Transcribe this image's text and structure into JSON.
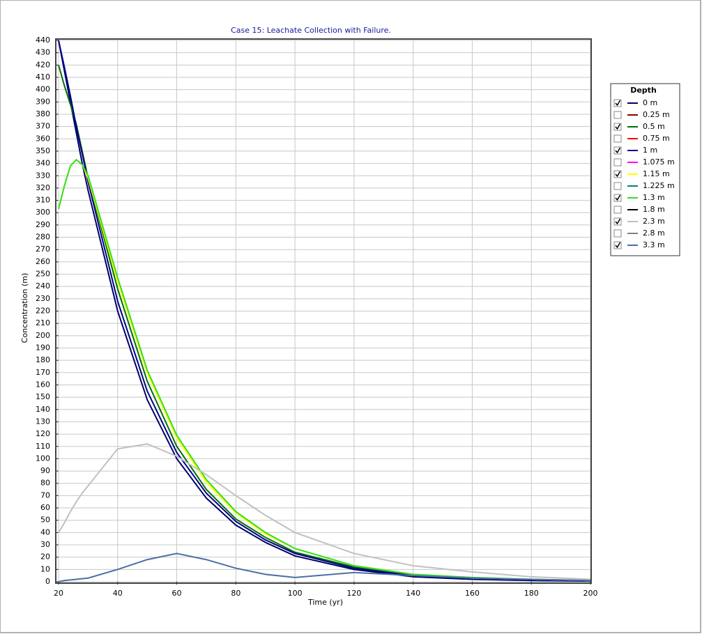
{
  "chart_data": {
    "type": "line",
    "title": "Case 15: Leachate Collection with Failure.",
    "x_label": "Time (yr)",
    "y_label": "Concentration (m)",
    "legend_title": "Depth",
    "legend": "right",
    "x": [
      20,
      22,
      24,
      26,
      28,
      30,
      40,
      50,
      60,
      70,
      80,
      90,
      100,
      120,
      140,
      160,
      180,
      200
    ],
    "xlim": [
      20,
      200
    ],
    "xticks": [
      20,
      40,
      60,
      80,
      100,
      120,
      140,
      160,
      180,
      200
    ],
    "ylim": [
      0,
      440
    ],
    "yticks": [
      0,
      10,
      20,
      30,
      40,
      50,
      60,
      70,
      80,
      90,
      100,
      110,
      120,
      130,
      140,
      150,
      160,
      170,
      180,
      190,
      200,
      210,
      220,
      230,
      240,
      250,
      260,
      270,
      280,
      290,
      300,
      310,
      320,
      330,
      340,
      350,
      360,
      370,
      380,
      390,
      400,
      410,
      420,
      430,
      440
    ],
    "grid": true,
    "series": [
      {
        "name": "0 m",
        "color": "#000066",
        "checked": true,
        "values": [
          440,
          415,
          390,
          365,
          340,
          318,
          220,
          148,
          100,
          68,
          46,
          32,
          21,
          10,
          4,
          2,
          1,
          0.5
        ]
      },
      {
        "name": "0.25 m",
        "color": "#8b0000",
        "checked": false
      },
      {
        "name": "0.5 m",
        "color": "#007000",
        "checked": true,
        "values": [
          420,
          403,
          388,
          372,
          350,
          328,
          238,
          163,
          110,
          75,
          51,
          36,
          24,
          12,
          5,
          3,
          1.5,
          0.8
        ]
      },
      {
        "name": "0.75 m",
        "color": "#ff0000",
        "checked": false
      },
      {
        "name": "1 m",
        "color": "#00008b",
        "checked": true,
        "values": [
          440,
          418,
          395,
          370,
          348,
          325,
          228,
          155,
          105,
          72,
          49,
          34,
          23,
          11,
          5,
          2.5,
          1.2,
          0.6
        ]
      },
      {
        "name": "1.075 m",
        "color": "#ff00ff",
        "checked": false
      },
      {
        "name": "1.15 m",
        "color": "#ffff00",
        "checked": true,
        "values": [
          303,
          322,
          338,
          343,
          339,
          328,
          244,
          170,
          117,
          81,
          56,
          39,
          27,
          13,
          6,
          3,
          2,
          1
        ]
      },
      {
        "name": "1.225 m",
        "color": "#008080",
        "checked": false
      },
      {
        "name": "1.3 m",
        "color": "#33dd22",
        "checked": true,
        "values": [
          303,
          322,
          338,
          343,
          339,
          330,
          247,
          172,
          119,
          83,
          57,
          40,
          27,
          13,
          6,
          3.5,
          2,
          1
        ]
      },
      {
        "name": "1.8 m",
        "color": "#000000",
        "checked": false
      },
      {
        "name": "2.3 m",
        "color": "#c0c0c0",
        "checked": true,
        "values": [
          40,
          48,
          57,
          65,
          72,
          78,
          108,
          112,
          102,
          87,
          70,
          54,
          40,
          23,
          13,
          8,
          4,
          2
        ]
      },
      {
        "name": "2.8 m",
        "color": "#808080",
        "checked": false
      },
      {
        "name": "3.3 m",
        "color": "#4a6fa5",
        "checked": true,
        "values": [
          0,
          1,
          1.5,
          2,
          2.5,
          3,
          10,
          18,
          23,
          18,
          11,
          6,
          3.5,
          7.5,
          5,
          3,
          2,
          1
        ]
      }
    ]
  }
}
